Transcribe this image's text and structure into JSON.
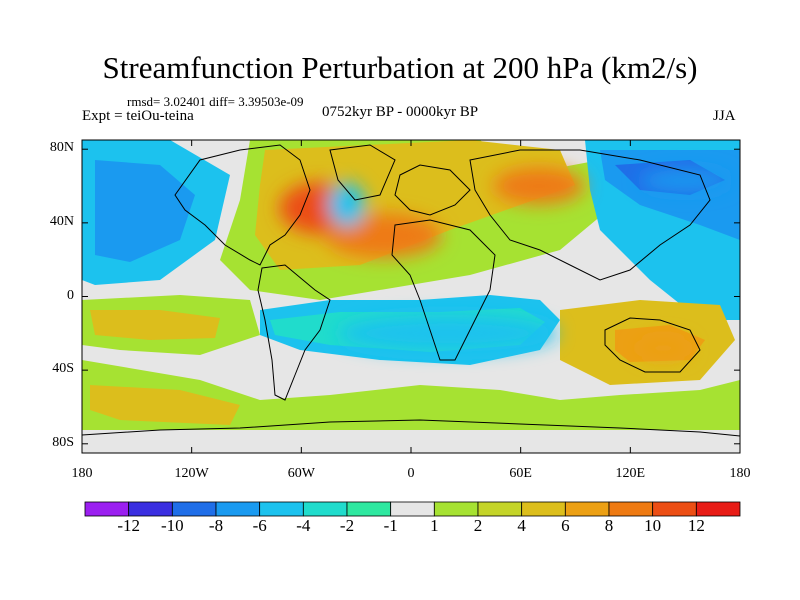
{
  "title": "Streamfunction Perturbation at 200 hPa (km2/s)",
  "stats": "rmsd= 3.02401 diff= 3.39503e-09",
  "experiment": "Expt = teiOu-teina",
  "period": "0752kyr BP - 0000kyr BP",
  "season": "JJA",
  "axes": {
    "lat_ticks": [
      {
        "label": "80N",
        "lat": 80
      },
      {
        "label": "40N",
        "lat": 40
      },
      {
        "label": "0",
        "lat": 0
      },
      {
        "label": "40S",
        "lat": -40
      },
      {
        "label": "80S",
        "lat": -80
      }
    ],
    "lon_ticks": [
      {
        "label": "180",
        "lon": -180
      },
      {
        "label": "120W",
        "lon": -120
      },
      {
        "label": "60W",
        "lon": -60
      },
      {
        "label": "0",
        "lon": 0
      },
      {
        "label": "60E",
        "lon": 60
      },
      {
        "label": "120E",
        "lon": 120
      },
      {
        "label": "180",
        "lon": 180
      }
    ]
  },
  "colorbar": {
    "colors": [
      "#9b1ff0",
      "#3a2ee0",
      "#1f6ee8",
      "#1a9af0",
      "#1cc2ee",
      "#20dccc",
      "#2ee8a0",
      "#e6e6e6",
      "#a6e232",
      "#c4d428",
      "#dcbe1c",
      "#eca014",
      "#ee7a12",
      "#ec4e14",
      "#e81c16"
    ],
    "labels": [
      "-12",
      "-10",
      "-8",
      "-6",
      "-4",
      "-2",
      "-1",
      "1",
      "2",
      "4",
      "6",
      "8",
      "10",
      "12"
    ]
  },
  "field": {
    "background_color": "#e6e6e6",
    "blobs": [
      {
        "region": "north-atlantic-high",
        "lon": -50,
        "lat": 48,
        "lon_radius": 22,
        "lat_radius": 14,
        "level_color": "#ec4e14"
      },
      {
        "region": "central-atlantic-ridge",
        "lon": -15,
        "lat": 33,
        "lon_radius": 32,
        "lat_radius": 12,
        "level_color": "#ee7a12"
      },
      {
        "region": "eurasia-high",
        "lon": 70,
        "lat": 60,
        "lon_radius": 25,
        "lat_radius": 10,
        "level_color": "#ee7a12"
      },
      {
        "region": "australia-high",
        "lon": 138,
        "lat": -28,
        "lon_radius": 15,
        "lat_radius": 6,
        "level_color": "#eca014"
      },
      {
        "region": "north-pacific-low",
        "lon": 150,
        "lat": 63,
        "lon_radius": 25,
        "lat_radius": 6,
        "level_color": "#1a9af0"
      },
      {
        "region": "greenland-low",
        "lon": -35,
        "lat": 50,
        "lon_radius": 10,
        "lat_radius": 12,
        "level_color": "#1cc2ee"
      },
      {
        "region": "equatorial-low",
        "lon": 20,
        "lat": -20,
        "lon_radius": 60,
        "lat_radius": 10,
        "level_color": "#1cc2ee"
      }
    ]
  }
}
